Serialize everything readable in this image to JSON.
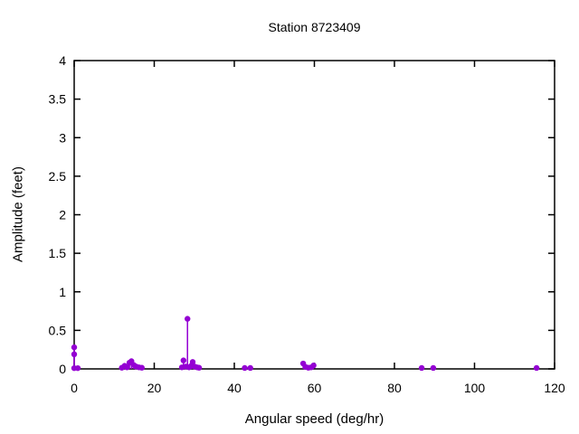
{
  "chart_data": {
    "type": "scatter",
    "style": "impulses-and-points",
    "title": "Station 8723409",
    "xlabel": "Angular speed (deg/hr)",
    "ylabel": "Amplitude (feet)",
    "xlim": [
      0,
      120
    ],
    "ylim": [
      0,
      4
    ],
    "xtick_step": 20,
    "ytick_step": 0.5,
    "grid": false,
    "legend": "none",
    "border_color": "#000000",
    "point_color": "#9400d3",
    "points": [
      {
        "x": 0,
        "y": 0.28
      },
      {
        "x": 0,
        "y": 0.19
      },
      {
        "x": 0,
        "y": 0.01
      },
      {
        "x": 0.9,
        "y": 0.01
      },
      {
        "x": 11.9,
        "y": 0.015
      },
      {
        "x": 12.6,
        "y": 0.04
      },
      {
        "x": 13.2,
        "y": 0.02
      },
      {
        "x": 13.8,
        "y": 0.08
      },
      {
        "x": 14.3,
        "y": 0.1
      },
      {
        "x": 14.9,
        "y": 0.05
      },
      {
        "x": 15.5,
        "y": 0.03
      },
      {
        "x": 16.2,
        "y": 0.02
      },
      {
        "x": 16.9,
        "y": 0.015
      },
      {
        "x": 26.9,
        "y": 0.02
      },
      {
        "x": 27.3,
        "y": 0.11
      },
      {
        "x": 27.9,
        "y": 0.03
      },
      {
        "x": 28.3,
        "y": 0.65
      },
      {
        "x": 28.7,
        "y": 0.02
      },
      {
        "x": 29.2,
        "y": 0.04
      },
      {
        "x": 29.6,
        "y": 0.09
      },
      {
        "x": 30.1,
        "y": 0.03
      },
      {
        "x": 30.7,
        "y": 0.02
      },
      {
        "x": 31.2,
        "y": 0.015
      },
      {
        "x": 42.6,
        "y": 0.012
      },
      {
        "x": 44.0,
        "y": 0.012
      },
      {
        "x": 57.2,
        "y": 0.07
      },
      {
        "x": 57.8,
        "y": 0.025
      },
      {
        "x": 58.5,
        "y": 0.015
      },
      {
        "x": 59.2,
        "y": 0.02
      },
      {
        "x": 59.8,
        "y": 0.045
      },
      {
        "x": 86.8,
        "y": 0.012
      },
      {
        "x": 89.7,
        "y": 0.012
      },
      {
        "x": 115.5,
        "y": 0.012
      }
    ]
  }
}
